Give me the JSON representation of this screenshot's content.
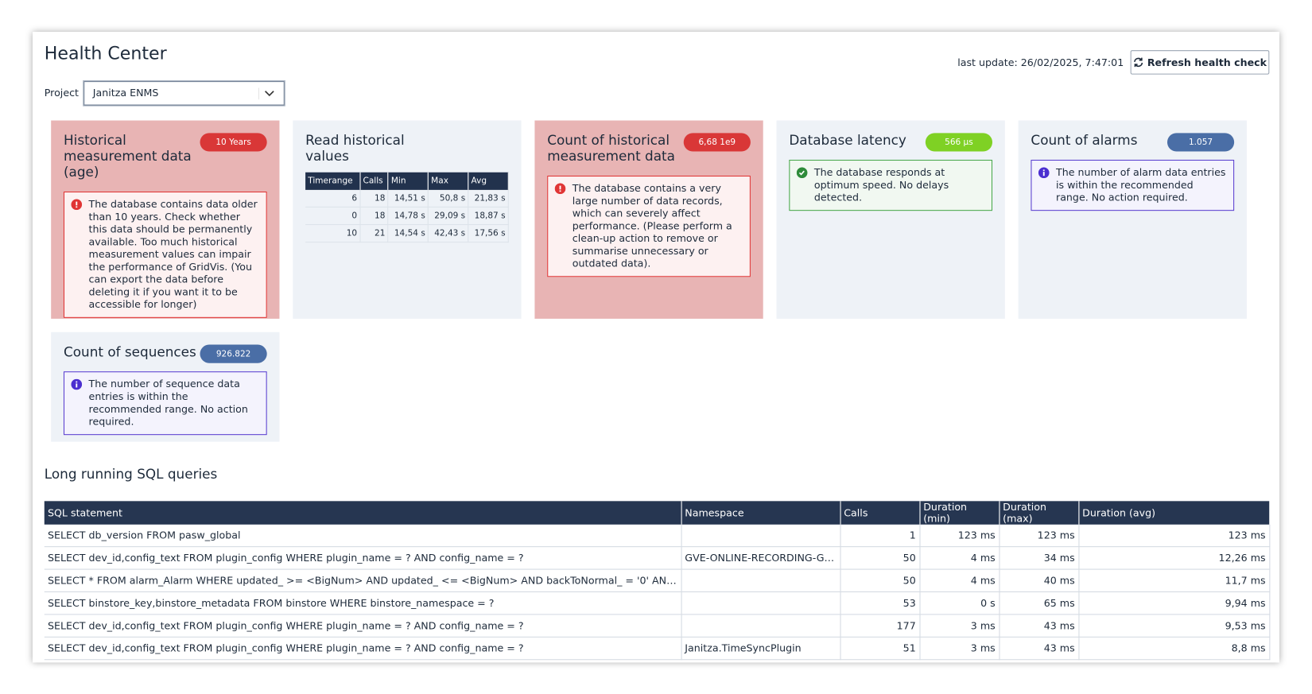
{
  "header": {
    "title": "Health Center",
    "last_update": "last update: 26/02/2025, 7:47:01",
    "refresh_button": "Refresh health check",
    "project_label": "Project",
    "project_value": "Janitza ENMS"
  },
  "cards": [
    {
      "title": "Historical measurement data (age)",
      "badge": "10 Years",
      "status": "error",
      "message": "The database contains data older than 10 years. Check whether this data should be permanently available. Too much historical measurement values can impair the performance of GridVis. (You can export the data before deleting it if you want it to be accessible for longer)"
    },
    {
      "title": "Read historical values",
      "status": "neutral",
      "table": {
        "headers": [
          "Timerange",
          "Calls",
          "Min",
          "Max",
          "Avg"
        ],
        "rows": [
          [
            "6",
            "18",
            "14,51 s",
            "50,8 s",
            "21,83 s"
          ],
          [
            "0",
            "18",
            "14,78 s",
            "29,09 s",
            "18,87 s"
          ],
          [
            "10",
            "21",
            "14,54 s",
            "42,43 s",
            "17,56 s"
          ]
        ]
      }
    },
    {
      "title": "Count of historical measurement data",
      "badge": "6,68 1e9",
      "status": "error",
      "message": "The database contains a very large number of data records, which can severely affect performance. (Please perform a clean-up action to remove or summarise unnecessary or outdated data)."
    },
    {
      "title": "Database latency",
      "badge": "566 µs",
      "status": "ok",
      "message": "The database responds at optimum speed. No delays detected."
    },
    {
      "title": "Count of alarms",
      "badge": "1.057",
      "status": "info",
      "message": "The number of alarm data entries is within the recommended range. No action required."
    },
    {
      "title": "Count of sequences",
      "badge": "926.822",
      "status": "info",
      "message": "The number of sequence data entries is within the recommended range. No action required."
    }
  ],
  "sql": {
    "title": "Long running SQL queries",
    "headers": [
      "SQL statement",
      "Namespace",
      "Calls",
      "Duration (min)",
      "Duration (max)",
      "Duration (avg)"
    ],
    "rows": [
      [
        "SELECT db_version FROM pasw_global",
        "",
        "1",
        "123 ms",
        "123 ms",
        "123 ms"
      ],
      [
        "SELECT dev_id,config_text FROM plugin_config WHERE plugin_name = ? AND config_name = ?",
        "GVE-ONLINE-RECORDING-GRO…",
        "50",
        "4 ms",
        "34 ms",
        "12,26 ms"
      ],
      [
        "SELECT * FROM alarm_Alarm WHERE updated_ >= <BigNum> AND updated_ <= <BigNum> AND backToNormal_ = '0' AND acknowledg…",
        "",
        "50",
        "4 ms",
        "40 ms",
        "11,7 ms"
      ],
      [
        "SELECT binstore_key,binstore_metadata FROM binstore WHERE binstore_namespace = ?",
        "",
        "53",
        "0 s",
        "65 ms",
        "9,94 ms"
      ],
      [
        "SELECT dev_id,config_text FROM plugin_config WHERE plugin_name = ? AND config_name = ?",
        "",
        "177",
        "3 ms",
        "43 ms",
        "9,53 ms"
      ],
      [
        "SELECT dev_id,config_text FROM plugin_config WHERE plugin_name = ? AND config_name = ?",
        "Janitza.TimeSyncPlugin",
        "51",
        "3 ms",
        "43 ms",
        "8,8 ms"
      ]
    ]
  }
}
